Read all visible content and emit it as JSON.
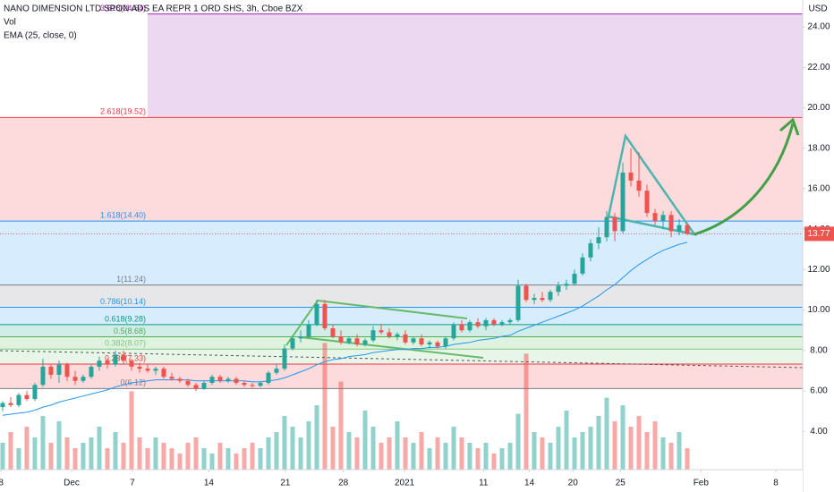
{
  "chart_data": {
    "type": "candlestick",
    "title": "NANO DIMENSION LTD SPON ADS EA REPR 1 ORD SHS, 3h, Cboe BZX",
    "y_unit": "USD",
    "ylim": [
      2.11,
      25.33
    ],
    "yticks": [
      {
        "value": 4,
        "label": "4.00"
      },
      {
        "value": 6,
        "label": "6.00"
      },
      {
        "value": 8,
        "label": "8.00"
      },
      {
        "value": 10,
        "label": "10.00"
      },
      {
        "value": 12,
        "label": "12.00"
      },
      {
        "value": 14,
        "label": "14.00"
      },
      {
        "value": 16,
        "label": "16.00"
      },
      {
        "value": 18,
        "label": "18.00"
      },
      {
        "value": 20,
        "label": "20.00"
      },
      {
        "value": 22,
        "label": "22.00"
      },
      {
        "value": 24,
        "label": "24.00"
      }
    ],
    "xlim": [
      -0.33,
      99.33
    ],
    "xticks": [
      {
        "value": -0.2,
        "label": "8"
      },
      {
        "value": 8.56,
        "label": "Dec"
      },
      {
        "value": 16.1,
        "label": "7"
      },
      {
        "value": 25.6,
        "label": "14"
      },
      {
        "value": 35.1,
        "label": "21"
      },
      {
        "value": 42.3,
        "label": "28"
      },
      {
        "value": 49.9,
        "label": "2021"
      },
      {
        "value": 59.7,
        "label": "11"
      },
      {
        "value": 65.4,
        "label": "14"
      },
      {
        "value": 70.8,
        "label": "20"
      },
      {
        "value": 76.7,
        "label": "25"
      },
      {
        "value": 86.7,
        "label": "Feb"
      },
      {
        "value": 96,
        "label": "8"
      }
    ],
    "up_color": "#26a69a",
    "down_color": "#ef5350",
    "last_price": 13.77,
    "ohlc": [
      [
        5.2,
        5.5,
        5.0,
        5.4
      ],
      [
        5.4,
        5.7,
        5.2,
        5.3
      ],
      [
        5.3,
        5.9,
        5.2,
        5.8
      ],
      [
        5.8,
        6.0,
        5.5,
        5.6
      ],
      [
        5.6,
        6.4,
        5.5,
        6.3
      ],
      [
        6.3,
        7.6,
        6.2,
        7.2
      ],
      [
        7.2,
        7.3,
        6.6,
        6.8
      ],
      [
        6.8,
        7.5,
        6.4,
        7.3
      ],
      [
        7.3,
        7.4,
        6.5,
        6.7
      ],
      [
        6.7,
        7.0,
        6.3,
        6.5
      ],
      [
        6.5,
        6.8,
        6.4,
        6.7
      ],
      [
        6.7,
        7.3,
        6.6,
        7.2
      ],
      [
        7.2,
        7.7,
        7.0,
        7.5
      ],
      [
        7.5,
        7.6,
        7.1,
        7.3
      ],
      [
        7.3,
        8.0,
        7.2,
        7.8
      ],
      [
        7.8,
        8.0,
        7.3,
        7.5
      ],
      [
        7.5,
        7.6,
        7.0,
        7.2
      ],
      [
        7.2,
        7.4,
        6.9,
        7.1
      ],
      [
        7.1,
        7.3,
        6.9,
        7.0
      ],
      [
        7.0,
        7.2,
        6.8,
        7.1
      ],
      [
        7.1,
        7.2,
        6.6,
        6.7
      ],
      [
        6.7,
        6.9,
        6.5,
        6.6
      ],
      [
        6.6,
        6.7,
        6.4,
        6.5
      ],
      [
        6.5,
        6.6,
        6.2,
        6.3
      ],
      [
        6.3,
        6.4,
        6.0,
        6.1
      ],
      [
        6.1,
        6.5,
        6.05,
        6.4
      ],
      [
        6.4,
        6.8,
        6.3,
        6.7
      ],
      [
        6.7,
        6.8,
        6.4,
        6.5
      ],
      [
        6.5,
        6.7,
        6.4,
        6.6
      ],
      [
        6.6,
        6.7,
        6.3,
        6.4
      ],
      [
        6.4,
        6.5,
        6.2,
        6.3
      ],
      [
        6.3,
        6.4,
        6.15,
        6.25
      ],
      [
        6.25,
        6.5,
        6.2,
        6.4
      ],
      [
        6.4,
        7.0,
        6.3,
        6.9
      ],
      [
        6.9,
        7.3,
        6.8,
        7.1
      ],
      [
        7.1,
        8.3,
        7.0,
        8.1
      ],
      [
        8.1,
        8.7,
        8.0,
        8.6
      ],
      [
        8.6,
        9.0,
        8.4,
        8.7
      ],
      [
        8.7,
        9.5,
        8.6,
        9.3
      ],
      [
        9.3,
        10.5,
        9.2,
        10.3
      ],
      [
        10.3,
        10.5,
        9.0,
        9.1
      ],
      [
        9.1,
        9.3,
        8.6,
        8.7
      ],
      [
        8.7,
        9.0,
        8.3,
        8.4
      ],
      [
        8.4,
        8.7,
        8.3,
        8.6
      ],
      [
        8.6,
        8.8,
        8.2,
        8.3
      ],
      [
        8.3,
        8.6,
        8.2,
        8.5
      ],
      [
        8.5,
        9.2,
        8.4,
        9.0
      ],
      [
        9.0,
        9.3,
        8.8,
        8.9
      ],
      [
        8.9,
        9.1,
        8.6,
        8.7
      ],
      [
        8.7,
        8.9,
        8.5,
        8.8
      ],
      [
        8.8,
        9.0,
        8.3,
        8.4
      ],
      [
        8.4,
        8.7,
        8.3,
        8.6
      ],
      [
        8.6,
        8.8,
        8.2,
        8.3
      ],
      [
        8.3,
        8.5,
        8.1,
        8.4
      ],
      [
        8.4,
        8.5,
        8.1,
        8.2
      ],
      [
        8.2,
        8.7,
        8.1,
        8.6
      ],
      [
        8.6,
        9.4,
        8.5,
        9.3
      ],
      [
        9.3,
        9.5,
        8.9,
        9.0
      ],
      [
        9.0,
        9.5,
        8.9,
        9.4
      ],
      [
        9.4,
        9.6,
        9.1,
        9.2
      ],
      [
        9.2,
        9.6,
        9.0,
        9.5
      ],
      [
        9.5,
        9.6,
        9.2,
        9.3
      ],
      [
        9.3,
        9.5,
        9.2,
        9.4
      ],
      [
        9.4,
        9.6,
        9.3,
        9.5
      ],
      [
        9.5,
        11.5,
        9.4,
        11.2
      ],
      [
        11.2,
        11.3,
        10.4,
        10.5
      ],
      [
        10.5,
        10.8,
        10.3,
        10.6
      ],
      [
        10.6,
        10.9,
        10.4,
        10.5
      ],
      [
        10.5,
        11.0,
        10.4,
        10.9
      ],
      [
        10.9,
        11.4,
        10.7,
        11.2
      ],
      [
        11.2,
        11.5,
        11.0,
        11.3
      ],
      [
        11.3,
        12.0,
        11.2,
        11.8
      ],
      [
        11.8,
        12.8,
        11.7,
        12.6
      ],
      [
        12.6,
        13.5,
        12.4,
        13.3
      ],
      [
        13.3,
        14.1,
        13.0,
        13.6
      ],
      [
        13.6,
        14.9,
        13.4,
        14.6
      ],
      [
        14.6,
        14.8,
        13.4,
        13.9
      ],
      [
        13.9,
        17.3,
        13.8,
        16.8
      ],
      [
        16.8,
        18.0,
        16.1,
        16.4
      ],
      [
        16.4,
        17.8,
        15.6,
        15.9
      ],
      [
        15.9,
        16.2,
        14.6,
        14.8
      ],
      [
        14.8,
        15.0,
        14.2,
        14.4
      ],
      [
        14.4,
        14.9,
        14.0,
        14.7
      ],
      [
        14.7,
        14.9,
        13.6,
        13.9
      ],
      [
        13.9,
        14.5,
        13.7,
        14.2
      ],
      [
        14.2,
        14.3,
        13.7,
        13.77
      ]
    ],
    "volume": {
      "name": "Vol",
      "lim": [
        0,
        12
      ],
      "values": [
        2.5,
        3.5,
        2.0,
        4.0,
        3.0,
        5.0,
        2.5,
        4.5,
        3.0,
        2.0,
        2.5,
        3.0,
        4.0,
        2.0,
        3.5,
        2.5,
        7.3,
        3.0,
        2.0,
        3.0,
        2.5,
        2.0,
        1.5,
        2.5,
        3.0,
        2.0,
        1.5,
        2.5,
        2.0,
        1.5,
        2.0,
        2.5,
        2.0,
        3.0,
        3.5,
        5.0,
        4.0,
        3.0,
        4.5,
        6.0,
        11.8,
        4.0,
        8.2,
        3.5,
        3.0,
        5.5,
        4.0,
        2.5,
        3.0,
        4.5,
        3.0,
        2.5,
        3.5,
        2.0,
        3.0,
        2.5,
        4.0,
        3.0,
        2.5,
        2.0,
        2.5,
        1.5,
        2.0,
        2.5,
        5.2,
        10.8,
        3.5,
        3.0,
        2.5,
        4.0,
        5.5,
        3.0,
        3.5,
        4.0,
        5.0,
        6.7,
        4.5,
        6.0,
        4.0,
        5.0,
        3.5,
        4.5,
        3.0,
        2.5,
        3.5,
        2.0
      ]
    },
    "ema": {
      "name": "EMA (25, close, 0)",
      "color": "#2196f3",
      "values": [
        4.8,
        4.85,
        4.9,
        4.95,
        5.05,
        5.2,
        5.3,
        5.45,
        5.55,
        5.65,
        5.75,
        5.85,
        5.95,
        6.05,
        6.2,
        6.3,
        6.4,
        6.45,
        6.5,
        6.55,
        6.55,
        6.55,
        6.55,
        6.55,
        6.5,
        6.5,
        6.5,
        6.5,
        6.5,
        6.5,
        6.5,
        6.45,
        6.45,
        6.5,
        6.55,
        6.65,
        6.8,
        6.95,
        7.1,
        7.3,
        7.45,
        7.55,
        7.6,
        7.7,
        7.75,
        7.8,
        7.9,
        7.95,
        8.0,
        8.05,
        8.05,
        8.1,
        8.1,
        8.15,
        8.15,
        8.2,
        8.3,
        8.35,
        8.4,
        8.5,
        8.55,
        8.6,
        8.7,
        8.75,
        8.95,
        9.1,
        9.25,
        9.4,
        9.55,
        9.7,
        9.85,
        10.0,
        10.2,
        10.45,
        10.7,
        11.0,
        11.25,
        11.6,
        11.95,
        12.25,
        12.5,
        12.75,
        12.95,
        13.1,
        13.25,
        13.35
      ]
    },
    "fib_levels": [
      {
        "value": 24.64,
        "label": "3.618(24.64)",
        "color": "#9c27b0"
      },
      {
        "value": 19.52,
        "label": "2.618(19.52)",
        "color": "#f23645"
      },
      {
        "value": 14.4,
        "label": "1.618(14.40)",
        "color": "#2196f3"
      },
      {
        "value": 11.24,
        "label": "1(11.24)",
        "color": "#787b86"
      },
      {
        "value": 10.14,
        "label": "0.786(10.14)",
        "color": "#2196f3"
      },
      {
        "value": 9.28,
        "label": "0.618(9.28)",
        "color": "#089981"
      },
      {
        "value": 8.68,
        "label": "0.5(8.68)",
        "color": "#4caf50"
      },
      {
        "value": 8.07,
        "label": "0.382(8.07)",
        "color": "#81c784"
      },
      {
        "value": 7.33,
        "label": "0.236(7.33)",
        "color": "#f23645"
      },
      {
        "value": 6.12,
        "label": "0(6.12)",
        "color": "#787b86"
      }
    ]
  }
}
